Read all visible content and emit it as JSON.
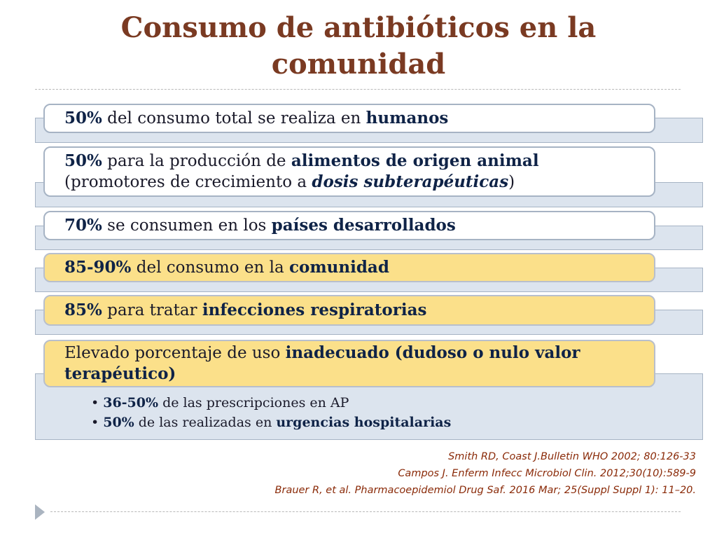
{
  "title": "Consumo de antibióticos en la comunidad",
  "items": [
    {
      "bold_lead": "50%",
      "text": " del consumo total se realiza en ",
      "bold_tail": "humanos"
    },
    {
      "bold_lead": "50%",
      "text": " para la producción de ",
      "bold_tail": "alimentos de origen animal",
      "line2_pre": "(promotores de crecimiento a ",
      "line2_em": "dosis subterapéuticas",
      "line2_post": ")"
    },
    {
      "bold_lead": "70%",
      "text": " se consumen en los  ",
      "bold_tail": "países desarrollados"
    },
    {
      "bold_lead": "85-90%",
      "text": " del consumo en la ",
      "bold_tail": "comunidad"
    },
    {
      "bold_lead": "85%",
      "text": " para tratar ",
      "bold_tail": "infecciones respiratorias"
    },
    {
      "text": "Elevado porcentaje de uso ",
      "bold_tail": "inadecuado (dudoso o nulo valor terapéutico)"
    }
  ],
  "sub_items": [
    {
      "bold": "36-50%",
      "text": " de las prescripciones en AP",
      "bold_tail": ""
    },
    {
      "bold": "50%",
      "text": " de las realizadas en ",
      "bold_tail": "urgencias hospitalarias"
    }
  ],
  "references": [
    "Smith RD, Coast J.Bulletin WHO 2002; 80:126-33",
    "Campos J. Enferm Infecc Microbiol Clin. 2012;30(10):589-9",
    "Brauer R, et al.  Pharmacoepidemiol Drug Saf. 2016 Mar; 25(Suppl Suppl 1): 11–20."
  ],
  "colors": {
    "title": "#7a3a22",
    "highlight": "#fbe08a",
    "band": "#dce4ee",
    "reference": "#8a2a08"
  }
}
